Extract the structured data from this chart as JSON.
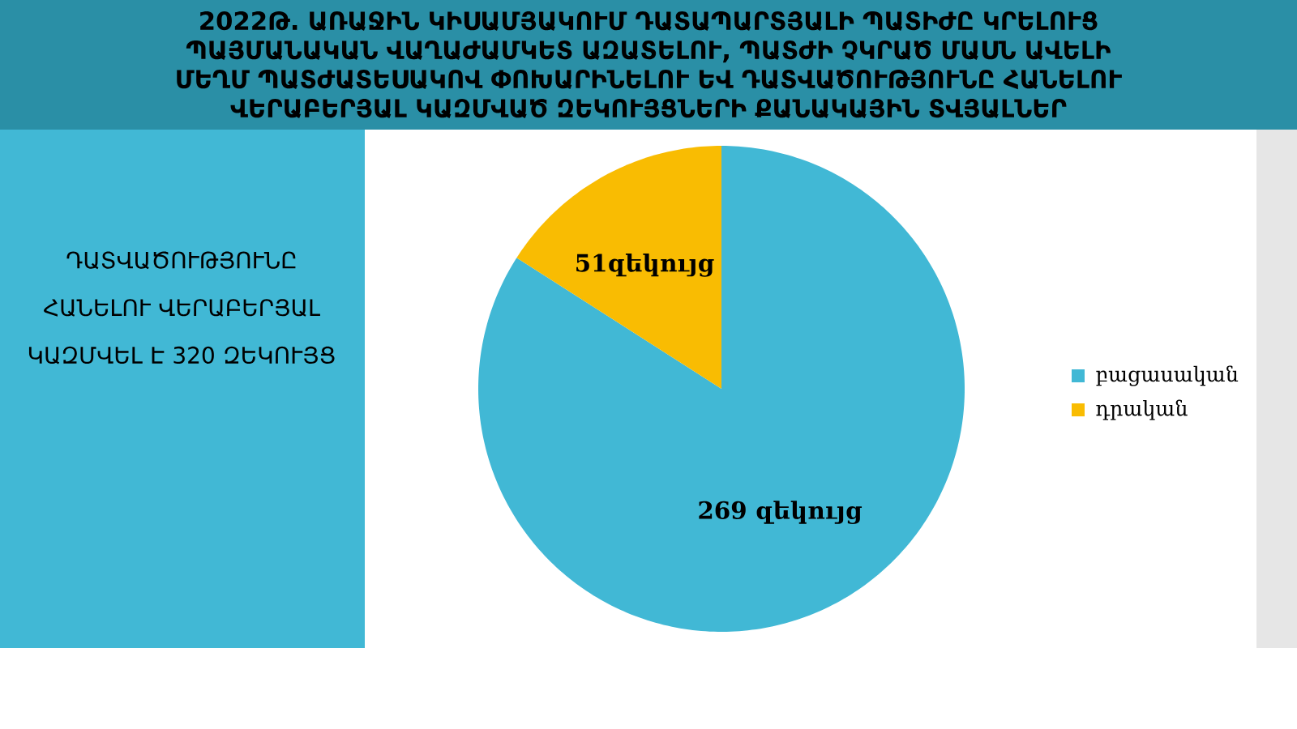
{
  "chart_data": {
    "type": "pie",
    "title": "2022Թ. ԱՌԱՋԻՆ ԿԻՍԱՄՅԱԿՈՒՄ ԴԱՏԱՊԱՐՏՅԱԼԻ ՊԱՏԻԺԸ ԿՐԵԼՈՒՑ ՊԱՅՄԱՆԱԿԱՆ ՎԱՂԱԺԱՄԿԵՏ ԱԶԱՏԵԼՈՒ, ՊԱՏԺԻ ՉԿՐԱԾ ՄԱՍՆ ԱՎԵԼԻ ՄԵՂՄ ՊԱՏԺԱՏԵՍԱԿՈՎ ՓՈԽԱՐԻՆԵԼՈՒ ԵՎ ԴԱՏՎԱԾՈՒԹՅՈՒՆԸ ՀԱՆԵԼՈՒ ՎԵՐԱԲԵՐՅԱԼ ԿԱԶՄՎԱԾ ԶԵԿՈՒՅՑՆԵՐԻ ՔԱՆԱԿԱՅԻՆ ՏՎՅԱԼՆԵՐ",
    "annotations": [
      "ԴԱՏՎԱԾՈՒԹՅՈՒՆԸ ՀԱՆԵԼՈՒ ՎԵՐԱԲԵՐՅԱԼ ԿԱԶՄՎԵԼ Է 320 ԶԵԿՈՒՅՑ"
    ],
    "categories": [
      "բացասական",
      "դրական"
    ],
    "values": [
      269,
      51
    ],
    "value_labels": [
      "269 զեկույց",
      "51զեկույց"
    ],
    "colors": [
      "#41b8d5",
      "#f9bc02"
    ],
    "legend": "right"
  }
}
